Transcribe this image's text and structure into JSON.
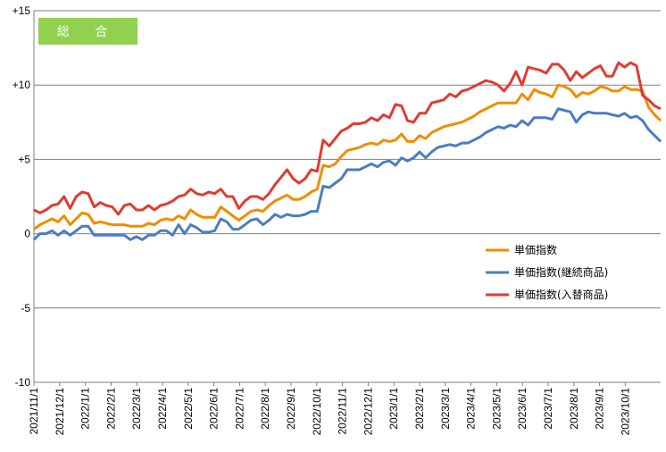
{
  "chart_data": {
    "type": "line",
    "title": "総 合",
    "title_badge_color": "#92D050",
    "ylim": [
      -10,
      15
    ],
    "y_ticks": [
      15,
      10,
      5,
      0,
      -5,
      -10
    ],
    "y_tick_labels": [
      "+15",
      "+10",
      "+5",
      "0",
      "-5",
      "-10"
    ],
    "x_tick_labels": [
      "2021/11/1",
      "2021/12/1",
      "2022/1/1",
      "2022/2/1",
      "2022/3/1",
      "2022/4/1",
      "2022/5/1",
      "2022/6/1",
      "2022/7/1",
      "2022/8/1",
      "2022/9/1",
      "2022/10/1",
      "2022/11/1",
      "2022/12/1",
      "2023/1/1",
      "2023/2/1",
      "2023/3/1",
      "2023/4/1",
      "2023/5/1",
      "2023/6/1",
      "2023/7/1",
      "2023/8/1",
      "2023/9/1",
      "2023/10/1"
    ],
    "grid": "horizontal",
    "legend_position": "right",
    "series": [
      {
        "name": "単価指数",
        "color": "#F28C00",
        "values": [
          0.3,
          0.6,
          0.8,
          1.0,
          0.8,
          1.2,
          0.6,
          1.0,
          1.4,
          1.3,
          0.7,
          0.8,
          0.7,
          0.6,
          0.6,
          0.6,
          0.5,
          0.5,
          0.5,
          0.7,
          0.6,
          0.9,
          1.0,
          0.9,
          1.2,
          1.0,
          1.6,
          1.3,
          1.1,
          1.1,
          1.1,
          1.8,
          1.5,
          1.2,
          0.9,
          1.2,
          1.5,
          1.6,
          1.5,
          1.9,
          2.2,
          2.4,
          2.6,
          2.3,
          2.3,
          2.5,
          2.8,
          3.0,
          4.6,
          4.5,
          4.7,
          5.2,
          5.6,
          5.7,
          5.8,
          6.0,
          6.1,
          6.0,
          6.3,
          6.2,
          6.3,
          6.7,
          6.2,
          6.2,
          6.6,
          6.4,
          6.8,
          7.0,
          7.2,
          7.3,
          7.4,
          7.5,
          7.7,
          7.9,
          8.2,
          8.4,
          8.6,
          8.8,
          8.8,
          8.8,
          8.8,
          9.4,
          9.0,
          9.7,
          9.5,
          9.4,
          9.2,
          10.0,
          9.9,
          9.7,
          9.2,
          9.5,
          9.4,
          9.6,
          9.9,
          9.8,
          9.6,
          9.6,
          9.9,
          9.7,
          9.7,
          9.6,
          8.5,
          8.0,
          7.6
        ]
      },
      {
        "name": "単価指数(継続商品)",
        "color": "#4A7EC0",
        "values": [
          -0.4,
          0.0,
          0.0,
          0.2,
          -0.1,
          0.2,
          -0.1,
          0.2,
          0.5,
          0.5,
          -0.1,
          -0.1,
          -0.1,
          -0.1,
          -0.1,
          -0.1,
          -0.4,
          -0.2,
          -0.4,
          -0.1,
          -0.1,
          0.2,
          0.2,
          -0.1,
          0.6,
          0.0,
          0.6,
          0.4,
          0.1,
          0.1,
          0.2,
          1.0,
          0.8,
          0.3,
          0.3,
          0.6,
          0.9,
          1.0,
          0.6,
          0.9,
          1.3,
          1.1,
          1.3,
          1.2,
          1.2,
          1.3,
          1.5,
          1.5,
          3.2,
          3.1,
          3.4,
          3.7,
          4.3,
          4.3,
          4.3,
          4.5,
          4.7,
          4.5,
          4.8,
          4.9,
          4.6,
          5.1,
          4.9,
          5.1,
          5.5,
          5.1,
          5.5,
          5.8,
          5.9,
          6.0,
          5.9,
          6.1,
          6.1,
          6.3,
          6.5,
          6.8,
          7.0,
          7.2,
          7.1,
          7.3,
          7.2,
          7.6,
          7.3,
          7.8,
          7.8,
          7.8,
          7.7,
          8.4,
          8.3,
          8.2,
          7.5,
          8.0,
          8.2,
          8.1,
          8.1,
          8.1,
          8.0,
          7.9,
          8.1,
          7.8,
          7.9,
          7.6,
          7.0,
          6.6,
          6.2
        ]
      },
      {
        "name": "単価指数(入替商品)",
        "color": "#E03C31",
        "values": [
          1.6,
          1.4,
          1.6,
          1.9,
          2.0,
          2.5,
          1.7,
          2.5,
          2.8,
          2.7,
          1.8,
          2.1,
          1.9,
          1.8,
          1.3,
          1.9,
          2.0,
          1.6,
          1.6,
          1.9,
          1.6,
          1.9,
          2.0,
          2.2,
          2.5,
          2.6,
          3.0,
          2.7,
          2.6,
          2.8,
          2.7,
          3.0,
          2.5,
          2.5,
          1.7,
          2.2,
          2.5,
          2.5,
          2.3,
          2.7,
          3.3,
          3.8,
          4.3,
          3.7,
          3.4,
          3.7,
          4.3,
          4.2,
          6.3,
          5.9,
          6.4,
          6.9,
          7.1,
          7.4,
          7.4,
          7.5,
          7.8,
          7.6,
          8.0,
          7.8,
          8.7,
          8.6,
          7.6,
          7.5,
          8.1,
          8.1,
          8.8,
          8.9,
          9.0,
          9.4,
          9.2,
          9.6,
          9.7,
          9.9,
          10.1,
          10.3,
          10.2,
          10.0,
          9.6,
          10.1,
          10.9,
          10.0,
          11.2,
          11.1,
          11.0,
          10.8,
          11.4,
          11.4,
          11.0,
          10.3,
          10.9,
          10.5,
          10.8,
          11.1,
          11.3,
          10.6,
          10.6,
          11.5,
          11.2,
          11.5,
          11.3,
          9.3,
          9.0,
          8.6,
          8.4
        ]
      }
    ]
  }
}
